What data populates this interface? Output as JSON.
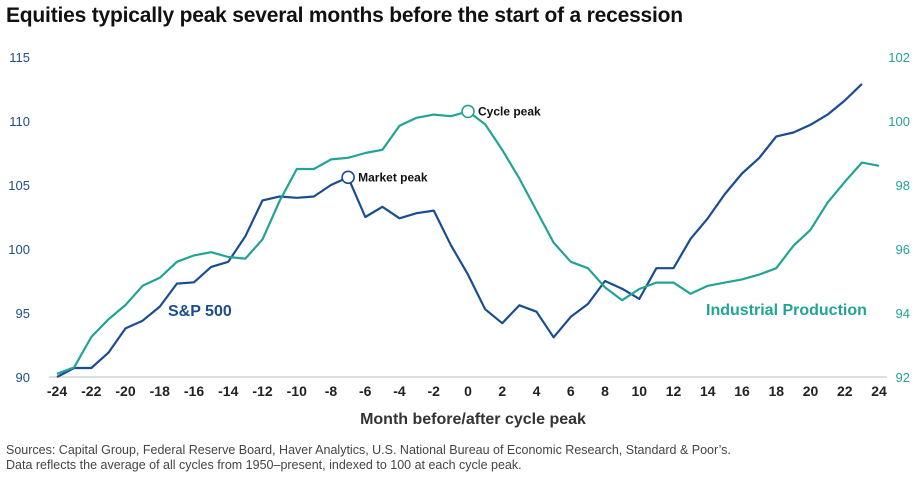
{
  "title": "Equities typically peak several months before the start of a recession",
  "source_lines": [
    "Sources: Capital Group, Federal Reserve Board, Haver Analytics, U.S. National Bureau of Economic Research, Standard & Poor’s.",
    "Data reflects the average of all cycles from 1950–present, indexed to 100 at each cycle peak."
  ],
  "colors": {
    "sp500": "#1a4d8f",
    "industrial_production": "#22a396",
    "axis_line": "#bbbbbb"
  },
  "chart_data": {
    "type": "line",
    "title": "Equities typically peak several months before the start of a recession",
    "xlabel": "Month before/after cycle peak",
    "ylabel_left": "",
    "ylabel_right": "",
    "x": [
      -24,
      -23,
      -22,
      -21,
      -20,
      -19,
      -18,
      -17,
      -16,
      -15,
      -14,
      -13,
      -12,
      -11,
      -10,
      -9,
      -8,
      -7,
      -6,
      -5,
      -4,
      -3,
      -2,
      -1,
      0,
      1,
      2,
      3,
      4,
      5,
      6,
      7,
      8,
      9,
      10,
      11,
      12,
      13,
      14,
      15,
      16,
      17,
      18,
      19,
      20,
      21,
      22,
      23,
      24
    ],
    "x_ticks": [
      -24,
      -22,
      -20,
      -18,
      -16,
      -14,
      -12,
      -10,
      -8,
      -6,
      -4,
      -2,
      0,
      2,
      4,
      6,
      8,
      10,
      12,
      14,
      16,
      18,
      20,
      22,
      24
    ],
    "xlim": [
      -24,
      24
    ],
    "ylim_left": [
      90,
      115
    ],
    "y_ticks_left": [
      90,
      95,
      100,
      105,
      110,
      115
    ],
    "ylim_right": [
      92,
      102
    ],
    "y_ticks_right": [
      92,
      94,
      96,
      98,
      100,
      102
    ],
    "grid": false,
    "series": [
      {
        "name": "S&P 500",
        "axis": "left",
        "x": [
          -24,
          -23,
          -22,
          -21,
          -20,
          -19,
          -18,
          -17,
          -16,
          -15,
          -14,
          -13,
          -12,
          -11,
          -10,
          -9,
          -8,
          -7,
          -6,
          -5,
          -4,
          -3,
          -2,
          -1,
          0,
          1,
          2,
          3,
          4,
          5,
          6,
          7,
          8,
          9,
          10,
          11,
          12,
          13,
          14,
          15,
          16,
          17,
          18,
          19,
          20,
          21,
          22,
          23
        ],
        "values": [
          90.0,
          90.7,
          90.7,
          91.9,
          93.8,
          94.4,
          95.5,
          97.3,
          97.4,
          98.6,
          99.0,
          101.0,
          103.8,
          104.1,
          104.0,
          104.1,
          105.0,
          105.6,
          102.5,
          103.3,
          102.4,
          102.8,
          103.0,
          100.3,
          98.0,
          95.3,
          94.2,
          95.6,
          95.1,
          93.1,
          94.7,
          95.7,
          97.5,
          96.9,
          96.1,
          98.5,
          98.5,
          100.8,
          102.4,
          104.3,
          105.9,
          107.1,
          108.8,
          109.1,
          109.7,
          110.5,
          111.6,
          112.9
        ]
      },
      {
        "name": "Industrial Production",
        "axis": "right",
        "x": [
          -24,
          -23,
          -22,
          -21,
          -20,
          -19,
          -18,
          -17,
          -16,
          -15,
          -14,
          -13,
          -12,
          -11,
          -10,
          -9,
          -8,
          -7,
          -6,
          -5,
          -4,
          -3,
          -2,
          -1,
          0,
          1,
          2,
          3,
          4,
          5,
          6,
          7,
          8,
          9,
          10,
          11,
          12,
          13,
          14,
          15,
          16,
          17,
          18,
          19,
          20,
          21,
          22,
          23,
          24
        ],
        "values": [
          92.1,
          92.3,
          93.25,
          93.8,
          94.25,
          94.85,
          95.1,
          95.6,
          95.8,
          95.9,
          95.75,
          95.7,
          96.3,
          97.5,
          98.5,
          98.5,
          98.8,
          98.85,
          99.0,
          99.1,
          99.85,
          100.1,
          100.2,
          100.15,
          100.3,
          99.9,
          99.1,
          98.2,
          97.2,
          96.2,
          95.6,
          95.4,
          94.8,
          94.4,
          94.75,
          94.95,
          94.95,
          94.6,
          94.85,
          94.95,
          95.05,
          95.2,
          95.4,
          96.1,
          96.6,
          97.45,
          98.1,
          98.7,
          98.6
        ]
      }
    ],
    "annotations": [
      {
        "label": "Market peak",
        "series": "S&P 500",
        "x": -7,
        "y": 105.6
      },
      {
        "label": "Cycle peak",
        "series": "Industrial Production",
        "x": 0,
        "y": 100.3
      }
    ],
    "series_labels": [
      {
        "text": "S&P 500",
        "series": "S&P 500"
      },
      {
        "text": "Industrial Production",
        "series": "Industrial Production"
      }
    ]
  }
}
